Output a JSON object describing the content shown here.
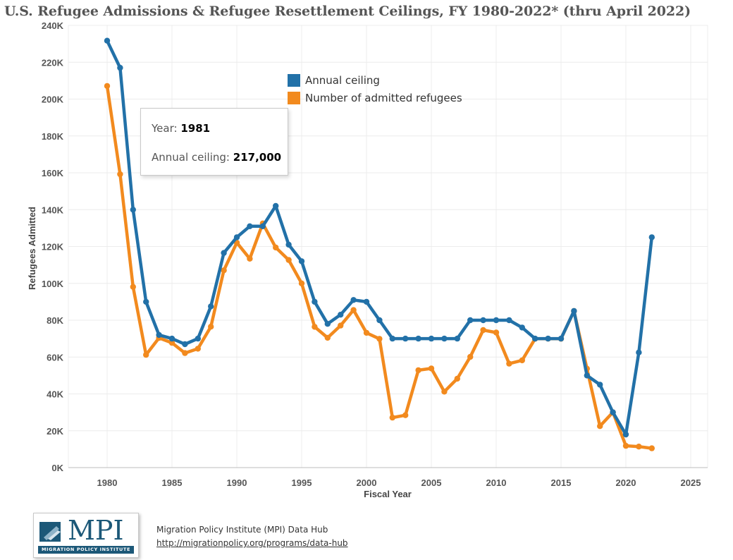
{
  "title": "U.S. Refugee Admissions & Refugee Resettlement Ceilings, FY 1980-2022* (thru April 2022)",
  "colors": {
    "ceiling": "#2271a8",
    "admitted": "#f28a1e",
    "grid": "#ececec",
    "axis_text": "#555555"
  },
  "chart_data": {
    "type": "line",
    "title": "U.S. Refugee Admissions & Refugee Resettlement Ceilings, FY 1980-2022* (thru April 2022)",
    "xlabel": "Fiscal Year",
    "ylabel": "Refugees Admitted",
    "xlim": [
      1975,
      2025
    ],
    "ylim": [
      0,
      240000
    ],
    "x_ticks": [
      1980,
      1985,
      1990,
      1995,
      2000,
      2005,
      2010,
      2015,
      2020,
      2025
    ],
    "x_tick_labels": [
      "1980",
      "1985",
      "1990",
      "1995",
      "2000",
      "2005",
      "2010",
      "2015",
      "2020",
      "2025"
    ],
    "y_ticks": [
      0,
      20000,
      40000,
      60000,
      80000,
      100000,
      120000,
      140000,
      160000,
      180000,
      200000,
      220000,
      240000
    ],
    "y_tick_labels": [
      "0K",
      "20K",
      "40K",
      "60K",
      "80K",
      "100K",
      "120K",
      "140K",
      "160K",
      "180K",
      "200K",
      "220K",
      "240K"
    ],
    "legend": "top-center",
    "grid": true,
    "series": [
      {
        "name": "Annual ceiling",
        "color": "#2271a8",
        "x": [
          1980,
          1981,
          1982,
          1983,
          1984,
          1985,
          1986,
          1987,
          1988,
          1989,
          1990,
          1991,
          1992,
          1993,
          1994,
          1995,
          1996,
          1997,
          1998,
          1999,
          2000,
          2001,
          2002,
          2003,
          2004,
          2005,
          2006,
          2007,
          2008,
          2009,
          2010,
          2011,
          2012,
          2013,
          2014,
          2015,
          2016,
          2017,
          2018,
          2019,
          2020,
          2021,
          2022
        ],
        "values": [
          231700,
          217000,
          140000,
          90000,
          72000,
          70000,
          67000,
          70000,
          87500,
          116500,
          125000,
          131000,
          131000,
          142000,
          121000,
          112000,
          90000,
          78000,
          83000,
          91000,
          90000,
          80000,
          70000,
          70000,
          70000,
          70000,
          70000,
          70000,
          80000,
          80000,
          80000,
          80000,
          76000,
          70000,
          70000,
          70000,
          85000,
          50000,
          45000,
          30000,
          18000,
          62500,
          125000
        ]
      },
      {
        "name": "Number of admitted refugees",
        "color": "#f28a1e",
        "x": [
          1980,
          1981,
          1982,
          1983,
          1984,
          1985,
          1986,
          1987,
          1988,
          1989,
          1990,
          1991,
          1992,
          1993,
          1994,
          1995,
          1996,
          1997,
          1998,
          1999,
          2000,
          2001,
          2002,
          2003,
          2004,
          2005,
          2006,
          2007,
          2008,
          2009,
          2010,
          2011,
          2012,
          2013,
          2014,
          2015,
          2016,
          2017,
          2018,
          2019,
          2020,
          2021,
          2022
        ],
        "values": [
          207116,
          159252,
          98096,
          61218,
          70393,
          67704,
          62146,
          64528,
          76483,
          107070,
          122066,
          113389,
          132531,
          119448,
          112682,
          99974,
          76403,
          70488,
          77080,
          85525,
          73147,
          69886,
          27131,
          28422,
          52873,
          53813,
          41223,
          48282,
          60107,
          74654,
          73311,
          56424,
          58238,
          69926,
          69987,
          69933,
          84994,
          53716,
          22491,
          30000,
          11814,
          11411,
          10500
        ]
      }
    ]
  },
  "tooltip": {
    "year_label": "Year:",
    "year_value": "1981",
    "ceiling_label": "Annual ceiling:",
    "ceiling_value": "217,000"
  },
  "footer": {
    "logo_text": "MPI",
    "logo_subtext": "MIGRATION POLICY INSTITUTE",
    "source": "Migration Policy Institute (MPI) Data Hub",
    "url": "http://migrationpolicy.org/programs/data-hub"
  }
}
